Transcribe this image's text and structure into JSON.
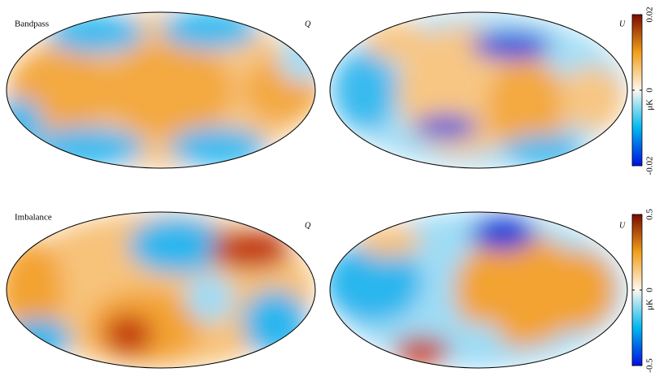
{
  "rows": [
    {
      "label": "Bandpass",
      "panels": [
        "Q",
        "U"
      ],
      "colorbar": {
        "clim": [
          -0.02,
          0.02
        ],
        "ticks": [
          -0.02,
          0,
          0.02
        ],
        "unit": "μK"
      }
    },
    {
      "label": "Imbalance",
      "panels": [
        "Q",
        "U"
      ],
      "colorbar": {
        "clim": [
          -0.5,
          0.5
        ],
        "ticks": [
          -0.5,
          0,
          0.5
        ],
        "unit": "μK"
      }
    }
  ]
}
